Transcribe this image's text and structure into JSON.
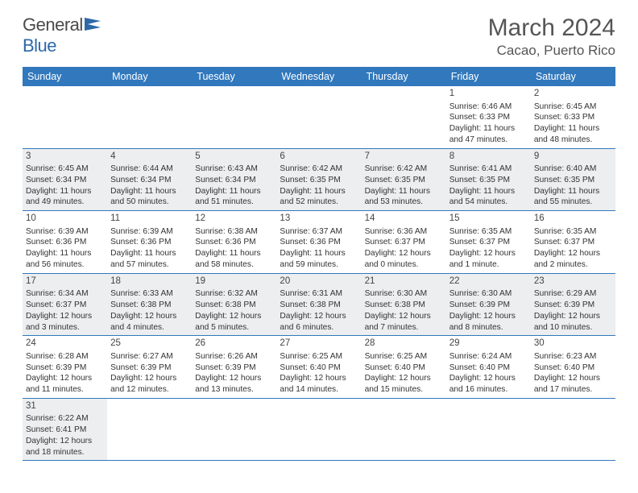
{
  "brand": {
    "part1": "General",
    "part2": "Blue"
  },
  "title": "March 2024",
  "location": "Cacao, Puerto Rico",
  "colors": {
    "header_bg": "#3178bd",
    "header_text": "#ffffff",
    "rule": "#3178bd",
    "shaded_bg": "#eceef0",
    "text": "#333333",
    "title_text": "#555555"
  },
  "day_labels": [
    "Sunday",
    "Monday",
    "Tuesday",
    "Wednesday",
    "Thursday",
    "Friday",
    "Saturday"
  ],
  "weeks": [
    [
      null,
      null,
      null,
      null,
      null,
      {
        "n": "1",
        "sr": "Sunrise: 6:46 AM",
        "ss": "Sunset: 6:33 PM",
        "dl1": "Daylight: 11 hours",
        "dl2": "and 47 minutes."
      },
      {
        "n": "2",
        "sr": "Sunrise: 6:45 AM",
        "ss": "Sunset: 6:33 PM",
        "dl1": "Daylight: 11 hours",
        "dl2": "and 48 minutes."
      }
    ],
    [
      {
        "n": "3",
        "sr": "Sunrise: 6:45 AM",
        "ss": "Sunset: 6:34 PM",
        "dl1": "Daylight: 11 hours",
        "dl2": "and 49 minutes."
      },
      {
        "n": "4",
        "sr": "Sunrise: 6:44 AM",
        "ss": "Sunset: 6:34 PM",
        "dl1": "Daylight: 11 hours",
        "dl2": "and 50 minutes."
      },
      {
        "n": "5",
        "sr": "Sunrise: 6:43 AM",
        "ss": "Sunset: 6:34 PM",
        "dl1": "Daylight: 11 hours",
        "dl2": "and 51 minutes."
      },
      {
        "n": "6",
        "sr": "Sunrise: 6:42 AM",
        "ss": "Sunset: 6:35 PM",
        "dl1": "Daylight: 11 hours",
        "dl2": "and 52 minutes."
      },
      {
        "n": "7",
        "sr": "Sunrise: 6:42 AM",
        "ss": "Sunset: 6:35 PM",
        "dl1": "Daylight: 11 hours",
        "dl2": "and 53 minutes."
      },
      {
        "n": "8",
        "sr": "Sunrise: 6:41 AM",
        "ss": "Sunset: 6:35 PM",
        "dl1": "Daylight: 11 hours",
        "dl2": "and 54 minutes."
      },
      {
        "n": "9",
        "sr": "Sunrise: 6:40 AM",
        "ss": "Sunset: 6:35 PM",
        "dl1": "Daylight: 11 hours",
        "dl2": "and 55 minutes."
      }
    ],
    [
      {
        "n": "10",
        "sr": "Sunrise: 6:39 AM",
        "ss": "Sunset: 6:36 PM",
        "dl1": "Daylight: 11 hours",
        "dl2": "and 56 minutes."
      },
      {
        "n": "11",
        "sr": "Sunrise: 6:39 AM",
        "ss": "Sunset: 6:36 PM",
        "dl1": "Daylight: 11 hours",
        "dl2": "and 57 minutes."
      },
      {
        "n": "12",
        "sr": "Sunrise: 6:38 AM",
        "ss": "Sunset: 6:36 PM",
        "dl1": "Daylight: 11 hours",
        "dl2": "and 58 minutes."
      },
      {
        "n": "13",
        "sr": "Sunrise: 6:37 AM",
        "ss": "Sunset: 6:36 PM",
        "dl1": "Daylight: 11 hours",
        "dl2": "and 59 minutes."
      },
      {
        "n": "14",
        "sr": "Sunrise: 6:36 AM",
        "ss": "Sunset: 6:37 PM",
        "dl1": "Daylight: 12 hours",
        "dl2": "and 0 minutes."
      },
      {
        "n": "15",
        "sr": "Sunrise: 6:35 AM",
        "ss": "Sunset: 6:37 PM",
        "dl1": "Daylight: 12 hours",
        "dl2": "and 1 minute."
      },
      {
        "n": "16",
        "sr": "Sunrise: 6:35 AM",
        "ss": "Sunset: 6:37 PM",
        "dl1": "Daylight: 12 hours",
        "dl2": "and 2 minutes."
      }
    ],
    [
      {
        "n": "17",
        "sr": "Sunrise: 6:34 AM",
        "ss": "Sunset: 6:37 PM",
        "dl1": "Daylight: 12 hours",
        "dl2": "and 3 minutes."
      },
      {
        "n": "18",
        "sr": "Sunrise: 6:33 AM",
        "ss": "Sunset: 6:38 PM",
        "dl1": "Daylight: 12 hours",
        "dl2": "and 4 minutes."
      },
      {
        "n": "19",
        "sr": "Sunrise: 6:32 AM",
        "ss": "Sunset: 6:38 PM",
        "dl1": "Daylight: 12 hours",
        "dl2": "and 5 minutes."
      },
      {
        "n": "20",
        "sr": "Sunrise: 6:31 AM",
        "ss": "Sunset: 6:38 PM",
        "dl1": "Daylight: 12 hours",
        "dl2": "and 6 minutes."
      },
      {
        "n": "21",
        "sr": "Sunrise: 6:30 AM",
        "ss": "Sunset: 6:38 PM",
        "dl1": "Daylight: 12 hours",
        "dl2": "and 7 minutes."
      },
      {
        "n": "22",
        "sr": "Sunrise: 6:30 AM",
        "ss": "Sunset: 6:39 PM",
        "dl1": "Daylight: 12 hours",
        "dl2": "and 8 minutes."
      },
      {
        "n": "23",
        "sr": "Sunrise: 6:29 AM",
        "ss": "Sunset: 6:39 PM",
        "dl1": "Daylight: 12 hours",
        "dl2": "and 10 minutes."
      }
    ],
    [
      {
        "n": "24",
        "sr": "Sunrise: 6:28 AM",
        "ss": "Sunset: 6:39 PM",
        "dl1": "Daylight: 12 hours",
        "dl2": "and 11 minutes."
      },
      {
        "n": "25",
        "sr": "Sunrise: 6:27 AM",
        "ss": "Sunset: 6:39 PM",
        "dl1": "Daylight: 12 hours",
        "dl2": "and 12 minutes."
      },
      {
        "n": "26",
        "sr": "Sunrise: 6:26 AM",
        "ss": "Sunset: 6:39 PM",
        "dl1": "Daylight: 12 hours",
        "dl2": "and 13 minutes."
      },
      {
        "n": "27",
        "sr": "Sunrise: 6:25 AM",
        "ss": "Sunset: 6:40 PM",
        "dl1": "Daylight: 12 hours",
        "dl2": "and 14 minutes."
      },
      {
        "n": "28",
        "sr": "Sunrise: 6:25 AM",
        "ss": "Sunset: 6:40 PM",
        "dl1": "Daylight: 12 hours",
        "dl2": "and 15 minutes."
      },
      {
        "n": "29",
        "sr": "Sunrise: 6:24 AM",
        "ss": "Sunset: 6:40 PM",
        "dl1": "Daylight: 12 hours",
        "dl2": "and 16 minutes."
      },
      {
        "n": "30",
        "sr": "Sunrise: 6:23 AM",
        "ss": "Sunset: 6:40 PM",
        "dl1": "Daylight: 12 hours",
        "dl2": "and 17 minutes."
      }
    ],
    [
      {
        "n": "31",
        "sr": "Sunrise: 6:22 AM",
        "ss": "Sunset: 6:41 PM",
        "dl1": "Daylight: 12 hours",
        "dl2": "and 18 minutes."
      },
      null,
      null,
      null,
      null,
      null,
      null
    ]
  ]
}
